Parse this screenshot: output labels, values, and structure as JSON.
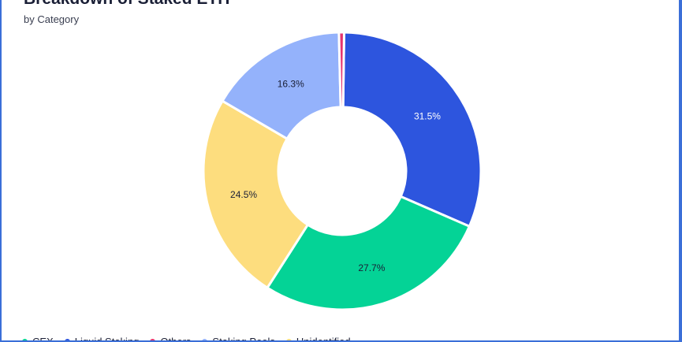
{
  "chart_data": {
    "type": "pie",
    "variant": "donut",
    "title": "Breakdown of Staked ETH",
    "subtitle": "by Category",
    "legend_position": "bottom",
    "slices": [
      {
        "name": "Liquid Staking",
        "value": 31.5,
        "label": "31.5%",
        "color": "#2d55de",
        "label_color": "#ffffff"
      },
      {
        "name": "CEX",
        "value": 27.7,
        "label": "27.7%",
        "color": "#04d396",
        "label_color": "#1a1f36"
      },
      {
        "name": "Unidentified",
        "value": 24.5,
        "label": "24.5%",
        "color": "#fddd7e",
        "label_color": "#1a1f36"
      },
      {
        "name": "Staking Pools",
        "value": 16.3,
        "label": "16.3%",
        "color": "#94b2fb",
        "label_color": "#1a1f36"
      },
      {
        "name": "Others",
        "value": 0.6,
        "label": "",
        "color": "#e6336f",
        "label_color": "#1a1f36"
      }
    ],
    "legend": [
      {
        "name": "CEX",
        "color": "#04d396"
      },
      {
        "name": "Liquid Staking",
        "color": "#2d55de"
      },
      {
        "name": "Others",
        "color": "#e6336f"
      },
      {
        "name": "Staking Pools",
        "color": "#94b2fb"
      },
      {
        "name": "Unidentified",
        "color": "#fddd7e"
      }
    ]
  }
}
